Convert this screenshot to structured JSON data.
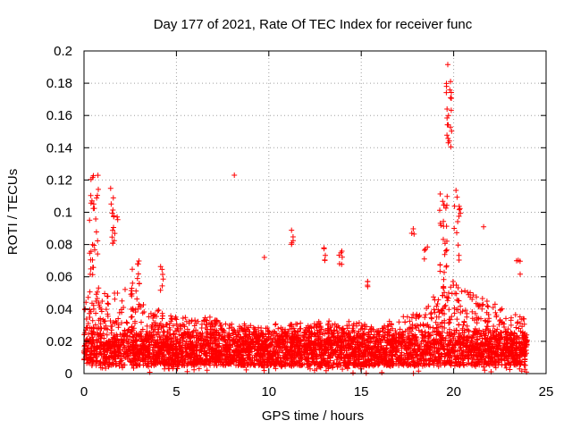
{
  "chart_data": {
    "type": "scatter",
    "title": "Day 177 of 2021, Rate Of TEC Index for receiver func",
    "xlabel": "GPS time / hours",
    "ylabel": "ROTI / TECUs",
    "xlim": [
      0,
      25
    ],
    "ylim": [
      0,
      0.2
    ],
    "xticks": [
      0,
      5,
      10,
      15,
      20,
      25
    ],
    "xtick_labels": [
      "0",
      "5",
      "10",
      "15",
      "20",
      "25"
    ],
    "yticks": [
      0,
      0.02,
      0.04,
      0.06,
      0.08,
      0.1,
      0.12,
      0.14,
      0.16,
      0.18,
      0.2
    ],
    "ytick_labels": [
      "0",
      "0.02",
      "0.04",
      "0.06",
      "0.08",
      "0.1",
      "0.12",
      "0.14",
      "0.16",
      "0.18",
      "0.2"
    ],
    "grid": true,
    "marker": "+",
    "color": "#ff0000",
    "data_extent_hours": [
      0,
      24
    ],
    "background_band": {
      "center": 0.016,
      "spread": 0.012
    },
    "envelope": [
      [
        0.0,
        0.045
      ],
      [
        0.5,
        0.06
      ],
      [
        1.0,
        0.05
      ],
      [
        2.0,
        0.05
      ],
      [
        2.5,
        0.055
      ],
      [
        3.0,
        0.045
      ],
      [
        4.0,
        0.04
      ],
      [
        5.0,
        0.035
      ],
      [
        7.0,
        0.035
      ],
      [
        9.0,
        0.03
      ],
      [
        10.0,
        0.03
      ],
      [
        12.0,
        0.032
      ],
      [
        14.0,
        0.033
      ],
      [
        16.0,
        0.03
      ],
      [
        17.0,
        0.035
      ],
      [
        18.5,
        0.04
      ],
      [
        19.5,
        0.06
      ],
      [
        20.0,
        0.06
      ],
      [
        21.0,
        0.05
      ],
      [
        22.0,
        0.045
      ],
      [
        23.0,
        0.04
      ],
      [
        24.0,
        0.04
      ]
    ],
    "clusters": [
      {
        "x": [
          0.3,
          0.8
        ],
        "y": [
          0.06,
          0.125
        ],
        "n": 30
      },
      {
        "x": [
          1.4,
          1.7
        ],
        "y": [
          0.08,
          0.115
        ],
        "n": 12
      },
      {
        "x": [
          1.6,
          2.0
        ],
        "y": [
          0.09,
          0.1
        ],
        "n": 4
      },
      {
        "x": [
          2.6,
          3.0
        ],
        "y": [
          0.05,
          0.07
        ],
        "n": 10
      },
      {
        "x": [
          4.1,
          4.3
        ],
        "y": [
          0.05,
          0.08
        ],
        "n": 6
      },
      {
        "x": [
          8.0,
          8.2
        ],
        "y": [
          0.122,
          0.124
        ],
        "n": 1
      },
      {
        "x": [
          9.7,
          9.8
        ],
        "y": [
          0.071,
          0.073
        ],
        "n": 1
      },
      {
        "x": [
          11.2,
          11.4
        ],
        "y": [
          0.08,
          0.09
        ],
        "n": 5
      },
      {
        "x": [
          12.9,
          13.1
        ],
        "y": [
          0.055,
          0.078
        ],
        "n": 5
      },
      {
        "x": [
          13.8,
          14.0
        ],
        "y": [
          0.06,
          0.078
        ],
        "n": 6
      },
      {
        "x": [
          15.3,
          15.5
        ],
        "y": [
          0.05,
          0.06
        ],
        "n": 4
      },
      {
        "x": [
          17.6,
          17.9
        ],
        "y": [
          0.085,
          0.09
        ],
        "n": 3
      },
      {
        "x": [
          18.4,
          18.6
        ],
        "y": [
          0.065,
          0.08
        ],
        "n": 4
      },
      {
        "x": [
          19.2,
          19.7
        ],
        "y": [
          0.06,
          0.12
        ],
        "n": 25
      },
      {
        "x": [
          19.6,
          19.9
        ],
        "y": [
          0.14,
          0.195
        ],
        "n": 22
      },
      {
        "x": [
          20.0,
          20.4
        ],
        "y": [
          0.07,
          0.115
        ],
        "n": 14
      },
      {
        "x": [
          21.6,
          21.8
        ],
        "y": [
          0.09,
          0.092
        ],
        "n": 1
      },
      {
        "x": [
          23.4,
          23.6
        ],
        "y": [
          0.06,
          0.075
        ],
        "n": 4
      }
    ]
  }
}
